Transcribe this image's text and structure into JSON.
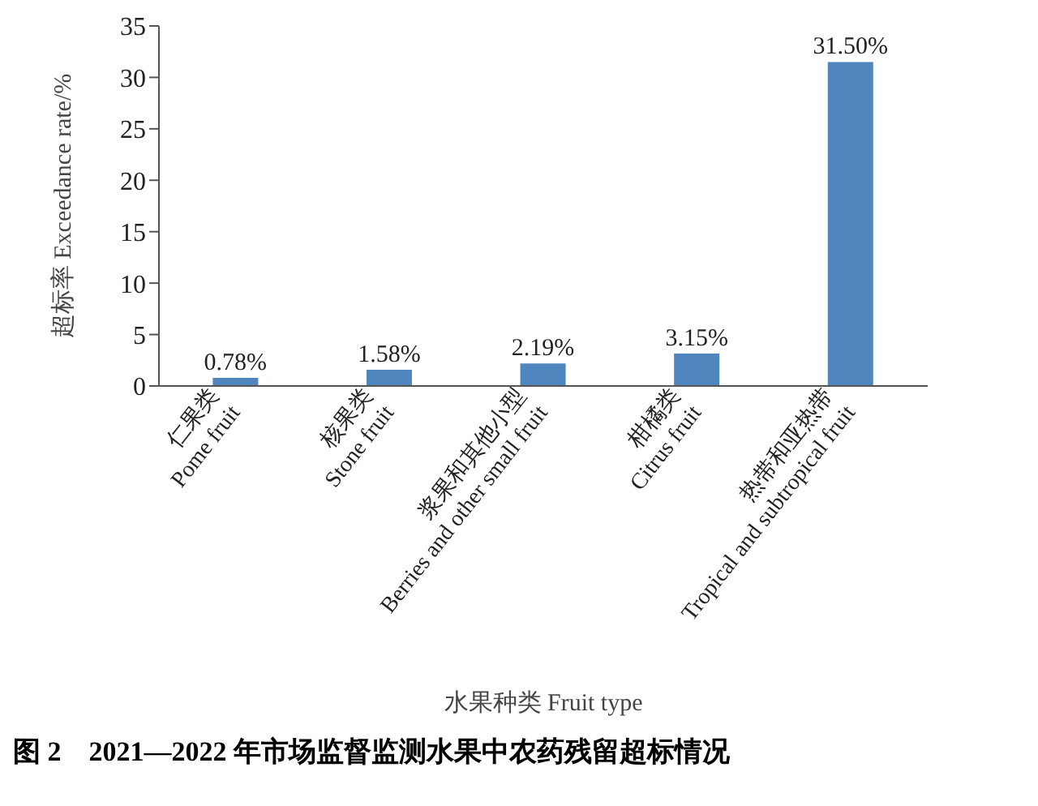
{
  "chart_data": {
    "type": "bar",
    "xlabel": "水果种类 Fruit type",
    "ylabel": "超标率 Exceedance rate/%",
    "categories": [
      "仁果类\nPome fruit",
      "核果类\nStone fruit",
      "浆果和其他小型\nBerries and other small fruit",
      "柑橘类\nCitrus fruit",
      "热带和亚热带\nTropical and subtropical fruit"
    ],
    "values": [
      0.78,
      1.58,
      2.19,
      3.15,
      31.5
    ],
    "value_labels": [
      "0.78%",
      "1.58%",
      "2.19%",
      "3.15%",
      "31.50%"
    ],
    "color": "#4f86bd",
    "ylim": [
      0,
      35
    ],
    "yticks": [
      0,
      5,
      10,
      15,
      20,
      25,
      30,
      35
    ],
    "grid": false,
    "annotations": [
      "图 2　2021—2022 年市场监督监测水果中农药残留超标情况"
    ]
  }
}
